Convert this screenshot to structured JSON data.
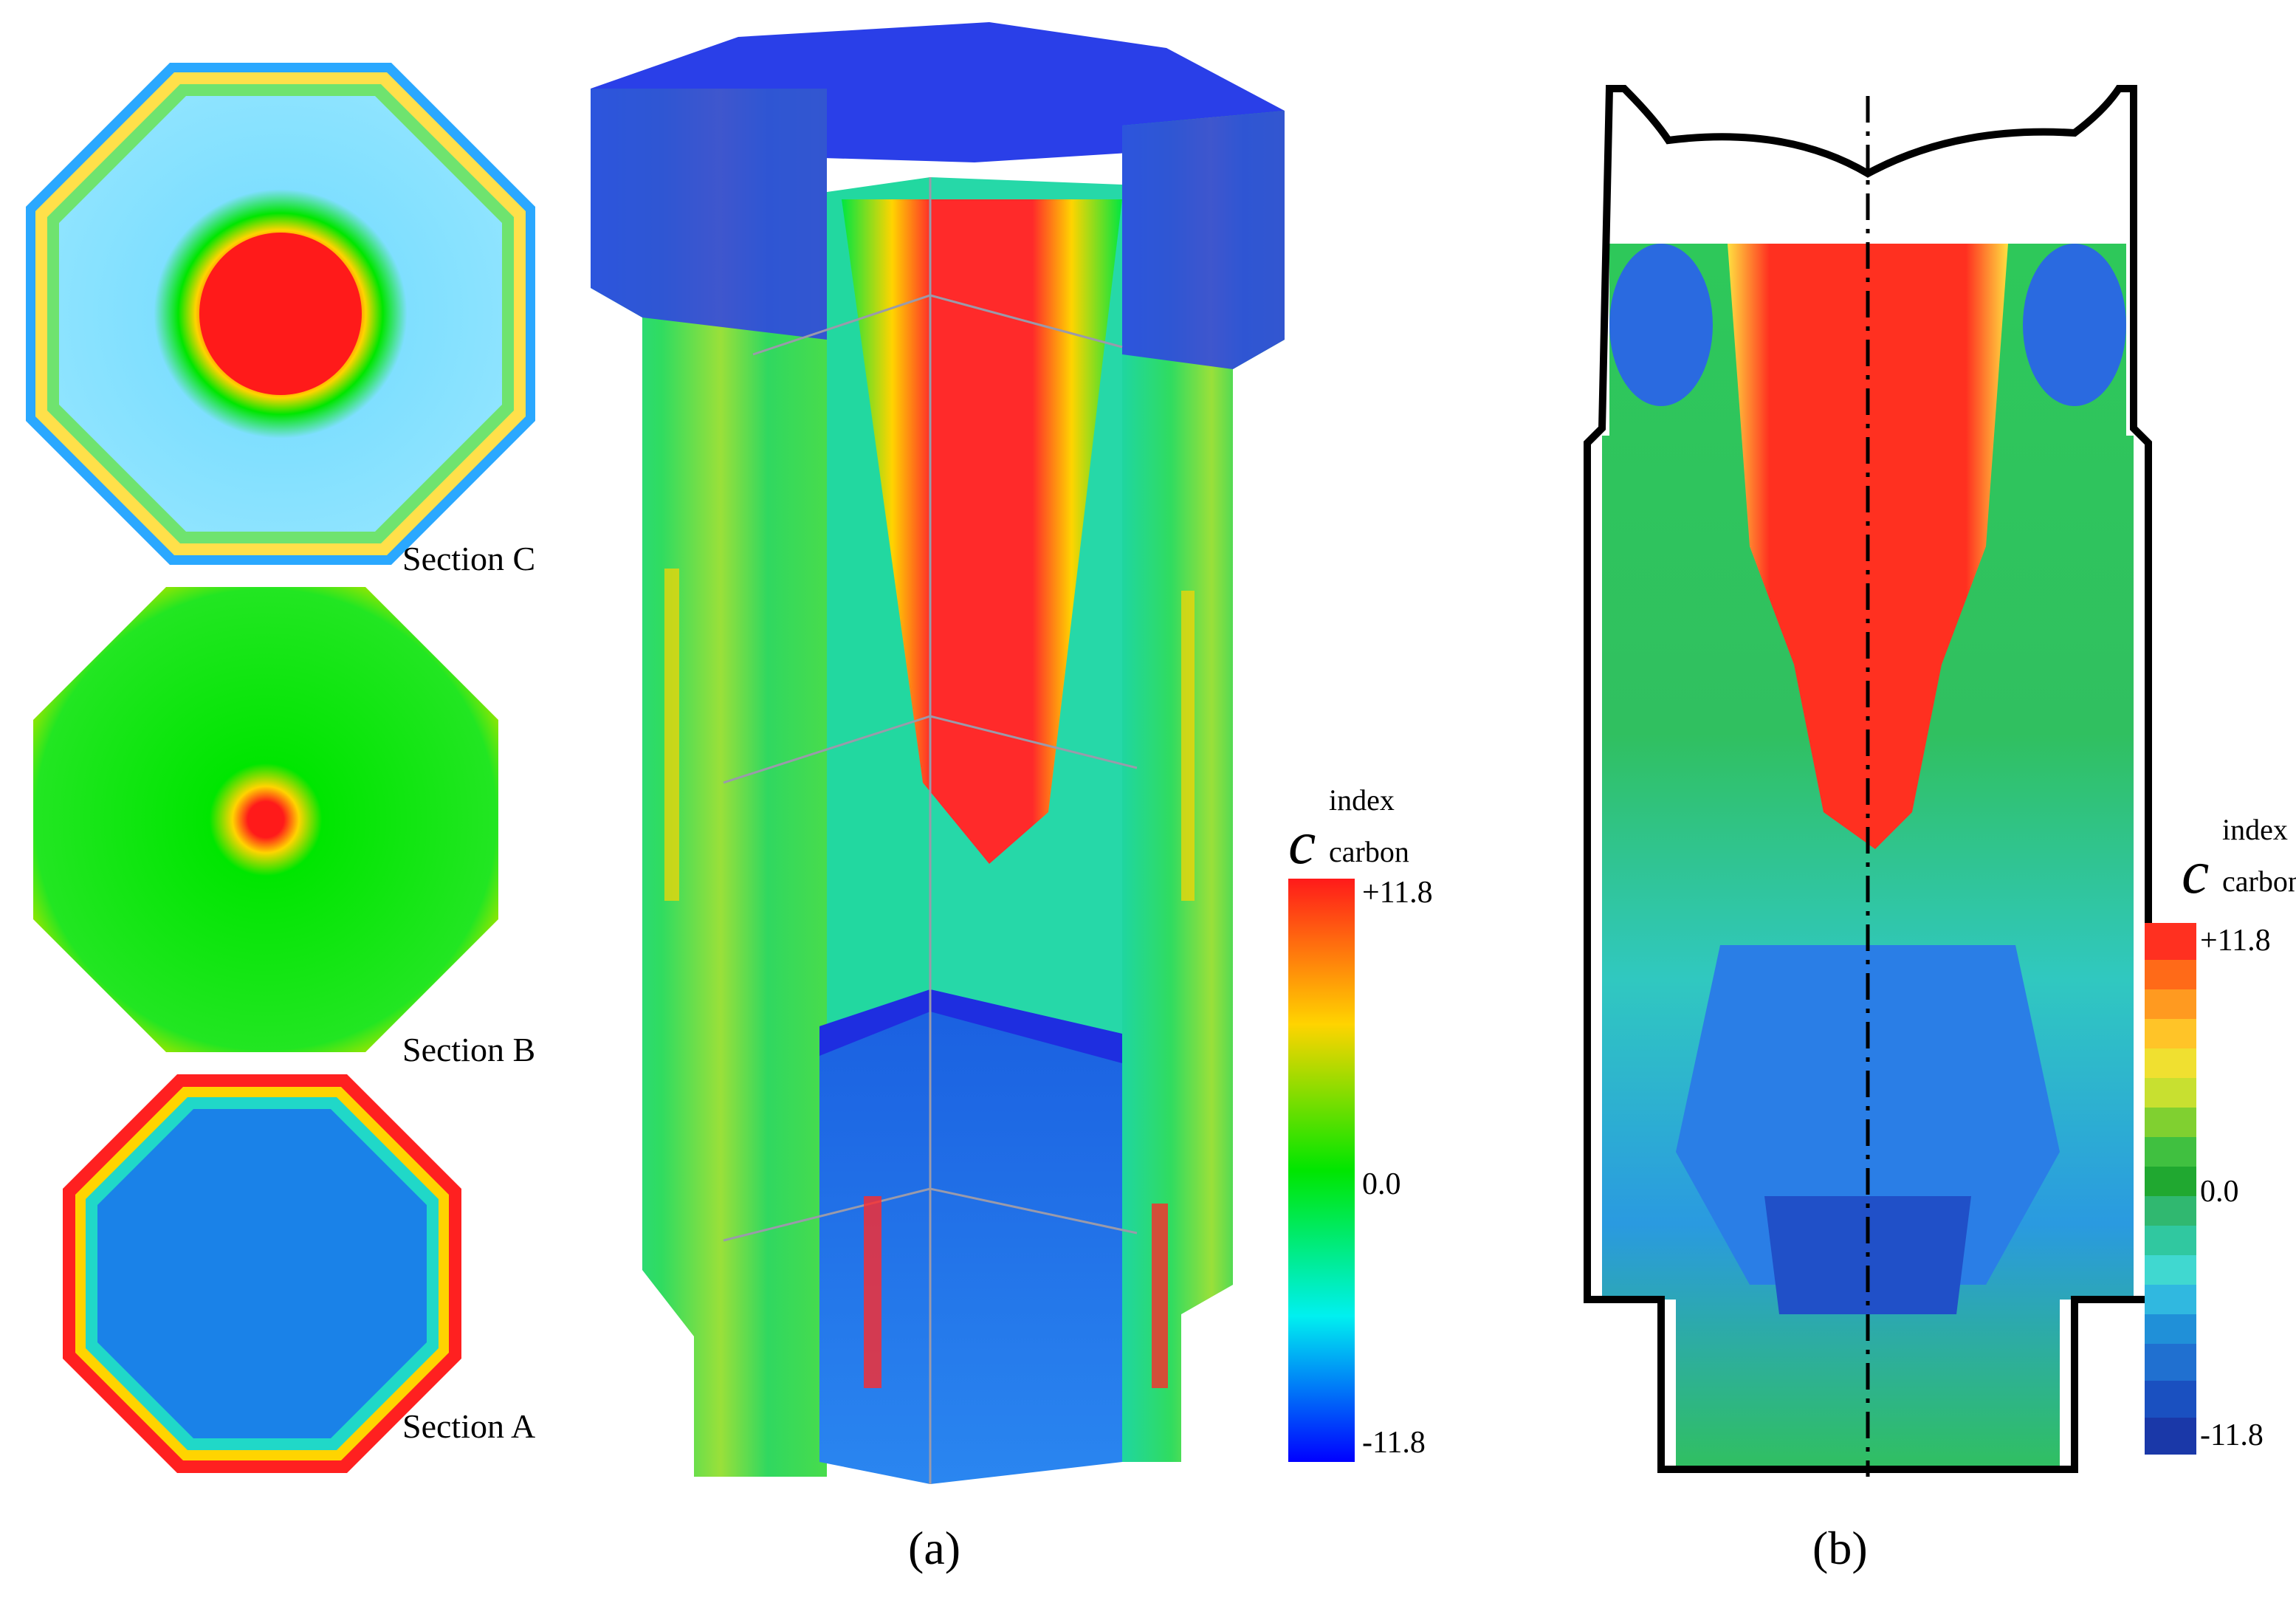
{
  "panel_a": {
    "label": "(a)",
    "sections": {
      "c_label": "Section C",
      "b_label": "Section B",
      "a_label": "Section A"
    },
    "legend": {
      "variable": "c",
      "superscript": "index",
      "subscript": "carbon",
      "max_label": "+11.8",
      "mid_label": "0.0",
      "min_label": "-11.8"
    }
  },
  "panel_b": {
    "label": "(b)",
    "legend": {
      "variable": "c",
      "superscript": "index",
      "subscript": "carbon",
      "max_label": "+11.8",
      "mid_label": "0.0",
      "min_label": "-11.8"
    }
  },
  "colormap": {
    "max": "#ff1a1a",
    "high": "#ffd400",
    "mid": "#00e600",
    "low": "#00f0f0",
    "min": "#0000ff"
  }
}
